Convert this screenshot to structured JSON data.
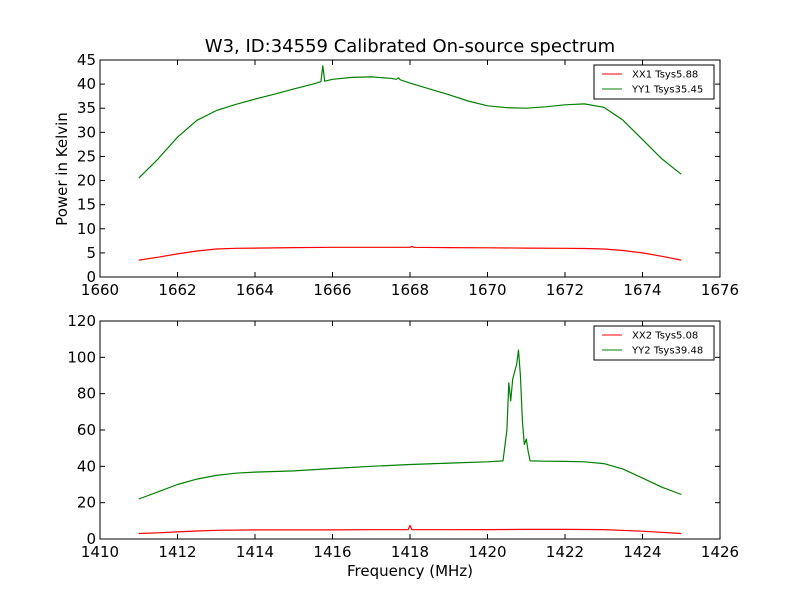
{
  "figure": {
    "title": "W3, ID:34559 Calibrated On-source spectrum"
  },
  "chart_data": [
    {
      "type": "line",
      "xlabel": "",
      "ylabel": "Power in Kelvin",
      "xlim": [
        1660,
        1676
      ],
      "ylim": [
        0,
        45
      ],
      "xticks": [
        "1660",
        "1662",
        "1664",
        "1666",
        "1668",
        "1670",
        "1672",
        "1674",
        "1676"
      ],
      "yticks": [
        "0",
        "5",
        "10",
        "15",
        "20",
        "25",
        "30",
        "35",
        "40",
        "45"
      ],
      "legend_position": "top-right",
      "grid": false,
      "series": [
        {
          "name": "XX1 Tsys5.88",
          "color": "#ff0000",
          "x": [
            1661.0,
            1661.5,
            1662.0,
            1662.5,
            1663.0,
            1663.5,
            1664.0,
            1665.0,
            1666.0,
            1667.0,
            1668.0,
            1668.05,
            1668.1,
            1669.0,
            1670.0,
            1671.0,
            1672.0,
            1672.5,
            1673.0,
            1673.5,
            1674.0,
            1674.5,
            1675.0
          ],
          "values": [
            3.5,
            4.1,
            4.8,
            5.4,
            5.8,
            5.95,
            6.0,
            6.1,
            6.15,
            6.15,
            6.15,
            6.35,
            6.15,
            6.1,
            6.05,
            6.0,
            5.95,
            5.9,
            5.8,
            5.5,
            5.0,
            4.3,
            3.5
          ]
        },
        {
          "name": "YY1 Tsys35.45",
          "color": "#008000",
          "x": [
            1661.0,
            1661.5,
            1662.0,
            1662.5,
            1663.0,
            1663.5,
            1664.0,
            1664.5,
            1665.0,
            1665.5,
            1665.7,
            1665.75,
            1665.8,
            1666.0,
            1666.5,
            1667.0,
            1667.5,
            1667.65,
            1667.7,
            1667.75,
            1668.0,
            1668.5,
            1669.0,
            1669.5,
            1670.0,
            1670.5,
            1671.0,
            1671.5,
            1672.0,
            1672.5,
            1673.0,
            1673.5,
            1674.0,
            1674.5,
            1675.0
          ],
          "values": [
            20.5,
            24.5,
            29.0,
            32.5,
            34.5,
            35.8,
            36.9,
            37.9,
            39.0,
            40.0,
            40.5,
            43.8,
            40.6,
            41.0,
            41.4,
            41.5,
            41.2,
            41.0,
            41.3,
            40.9,
            40.2,
            39.0,
            37.8,
            36.5,
            35.5,
            35.1,
            35.0,
            35.3,
            35.7,
            35.9,
            35.2,
            32.5,
            28.5,
            24.5,
            21.3
          ]
        }
      ]
    },
    {
      "type": "line",
      "xlabel": "Frequency (MHz)",
      "ylabel": "",
      "xlim": [
        1410,
        1426
      ],
      "ylim": [
        0,
        120
      ],
      "xticks": [
        "1410",
        "1412",
        "1414",
        "1416",
        "1418",
        "1420",
        "1422",
        "1424",
        "1426"
      ],
      "yticks": [
        "0",
        "20",
        "40",
        "60",
        "80",
        "100",
        "120"
      ],
      "legend_position": "top-right",
      "grid": false,
      "series": [
        {
          "name": "XX2 Tsys5.08",
          "color": "#ff0000",
          "x": [
            1411.0,
            1411.5,
            1412.0,
            1412.5,
            1413.0,
            1414.0,
            1415.0,
            1416.0,
            1417.0,
            1417.95,
            1418.0,
            1418.05,
            1419.0,
            1420.0,
            1421.0,
            1422.0,
            1423.0,
            1424.0,
            1425.0
          ],
          "values": [
            3.0,
            3.4,
            3.9,
            4.4,
            4.8,
            5.0,
            5.0,
            5.0,
            5.1,
            5.1,
            7.5,
            5.1,
            5.1,
            5.2,
            5.3,
            5.3,
            5.2,
            4.3,
            3.0
          ]
        },
        {
          "name": "YY2 Tsys39.48",
          "color": "#008000",
          "x": [
            1411.0,
            1411.5,
            1412.0,
            1412.5,
            1413.0,
            1413.5,
            1414.0,
            1415.0,
            1416.0,
            1417.0,
            1418.0,
            1419.0,
            1420.0,
            1420.4,
            1420.5,
            1420.55,
            1420.6,
            1420.65,
            1420.7,
            1420.75,
            1420.8,
            1420.85,
            1420.9,
            1420.95,
            1421.0,
            1421.05,
            1421.1,
            1421.5,
            1422.0,
            1422.5,
            1423.0,
            1423.5,
            1424.0,
            1424.5,
            1425.0
          ],
          "values": [
            22.0,
            26.0,
            30.0,
            33.0,
            35.0,
            36.2,
            36.8,
            37.5,
            38.8,
            40.0,
            41.0,
            41.8,
            42.5,
            43.0,
            60.0,
            86.0,
            76.0,
            88.0,
            92.0,
            96.0,
            104.0,
            90.0,
            65.0,
            52.0,
            55.0,
            48.0,
            43.0,
            42.8,
            42.7,
            42.5,
            41.5,
            38.5,
            33.5,
            28.5,
            24.5
          ]
        }
      ]
    }
  ]
}
